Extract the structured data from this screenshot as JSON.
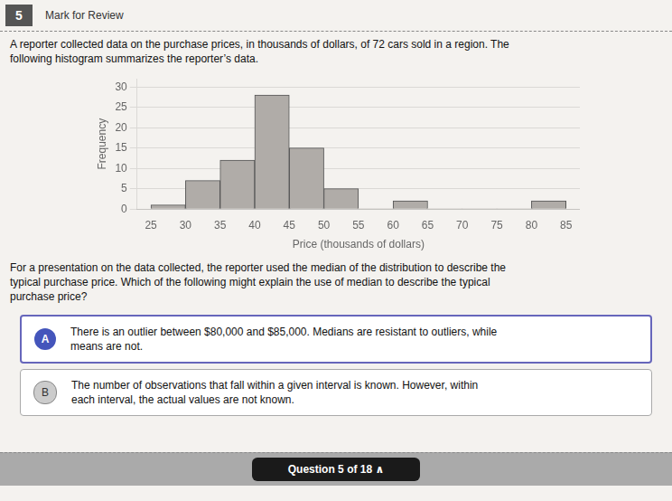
{
  "chart_data": {
    "type": "histogram",
    "xlabel": "Price (thousands of dollars)",
    "ylabel": "Frequency",
    "bins": [
      25,
      30,
      35,
      40,
      45,
      50,
      55,
      60,
      65,
      70,
      75,
      80,
      85
    ],
    "values": [
      1,
      7,
      12,
      28,
      15,
      5,
      0,
      2,
      0,
      0,
      0,
      2
    ],
    "color": "#b0aca8",
    "xlim": [
      23,
      87
    ],
    "xticks": [
      25,
      30,
      35,
      40,
      45,
      50,
      55,
      60,
      65,
      70,
      75,
      80,
      85
    ],
    "ylim": [
      0,
      32
    ],
    "yticks": [
      0,
      5,
      10,
      15,
      20,
      25,
      30
    ],
    "grid": true,
    "annotations": [
      "5",
      "Mark for Review",
      "A reporter collected data on the purchase prices, in thousands of dollars, of 72 cars sold in a region. The",
      "following histogram summarizes the reporter’s data.",
      "For a presentation on the data collected, the reporter used the median of the distribution to describe the",
      "typical purchase price. Which of the following might explain the use of median to describe the typical",
      "purchase price?",
      "A",
      "There is an outlier between $80,000 and $85,000. Medians are resistant to outliers, while",
      "means are not.",
      "B",
      "The number of observations that fall within a given interval is known. However, within",
      "each interval, the actual values are not known.",
      "Question 5 of 18  ∧"
    ]
  }
}
